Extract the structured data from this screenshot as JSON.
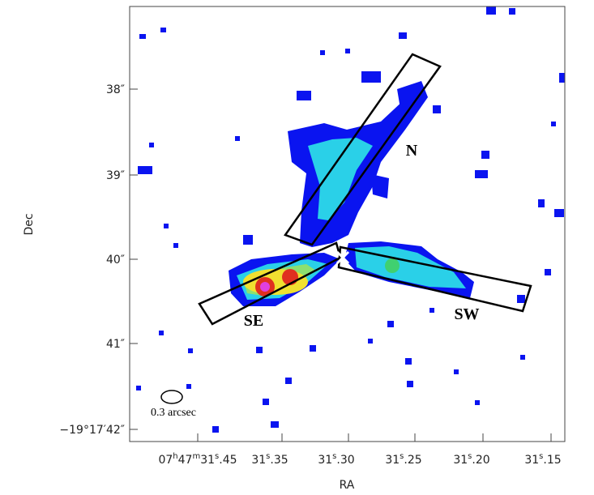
{
  "axes": {
    "x_label": "RA",
    "y_label": "Dec",
    "x_ticks": [
      "07h47m31s.45",
      "31s.35",
      "31s.30",
      "31s.25",
      "31s.20",
      "31s.15"
    ],
    "y_ticks": [
      "38″",
      "39″",
      "40″",
      "41″",
      "−19°17′42″"
    ]
  },
  "annotations": {
    "north": "N",
    "southeast": "SE",
    "southwest": "SW",
    "beam": "0.3 arcsec"
  }
}
